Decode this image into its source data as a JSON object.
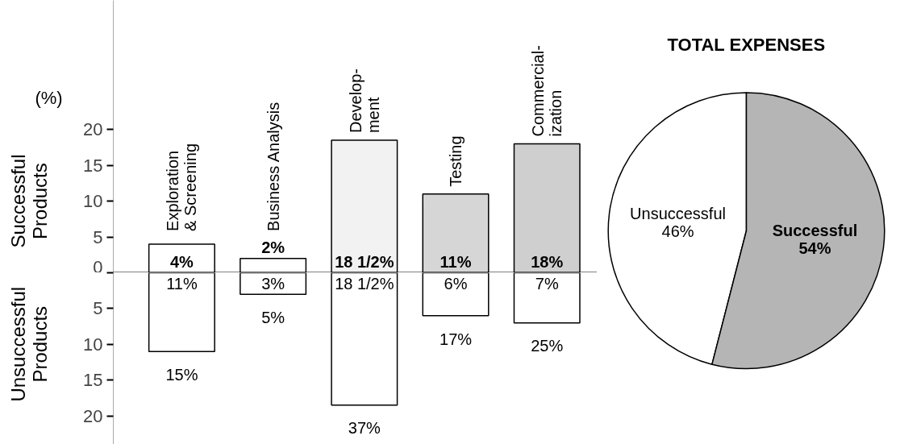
{
  "chart_data": [
    {
      "type": "bar",
      "ylabel": "(%)",
      "annotations": [
        "Successful\nProducts"
      ],
      "categories": [
        "Exploration\n& Screening",
        "Business  Analysis",
        "Develop-\nment",
        "Testing",
        "Commercial-\nization"
      ],
      "colors": [
        "#ffffff",
        "#ffffff",
        "#f2f2f2",
        "#d6d6d6",
        "#cfcfcf"
      ],
      "values": [
        4,
        2,
        18.5,
        11,
        18
      ],
      "value_labels": [
        "4%",
        "2%",
        "18 1/2%",
        "11%",
        "18%"
      ],
      "ylim": [
        0,
        38
      ],
      "yticks": [
        0,
        5,
        10,
        15,
        20
      ],
      "ref_lines": [
        {
          "axis": "y",
          "value": 0
        }
      ]
    },
    {
      "type": "bar",
      "annotations": [
        "Unsuccessful\nProducts",
        {
          "text": "15%",
          "y": 11
        },
        {
          "text": "5%",
          "y": 3
        },
        {
          "text": "37%",
          "y": 18.5
        },
        {
          "text": "17%",
          "y": 6
        },
        {
          "text": "25%",
          "y": 7
        }
      ],
      "categories": [
        null,
        null,
        null,
        null,
        null
      ],
      "colors": [
        "#ffffff",
        "#ffffff",
        "#ffffff",
        "#ffffff",
        "#ffffff"
      ],
      "values": [
        11,
        3,
        18.5,
        6,
        7
      ],
      "value_labels": [
        "11%",
        "3%",
        "18 1/2%",
        "6%",
        "7%"
      ],
      "ylim": [
        24,
        0
      ],
      "yticks": [
        {
          "value": 0,
          "label": null
        },
        5,
        10,
        15,
        20
      ]
    },
    {
      "type": "pie",
      "title": "TOTAL EXPENSES",
      "categories": [
        "Unsuccessful",
        "Successful"
      ],
      "values": [
        46,
        54
      ],
      "colors": [
        "#ffffff",
        "#b5b5b5"
      ],
      "value_labels": [
        "46%",
        "54%"
      ]
    }
  ]
}
